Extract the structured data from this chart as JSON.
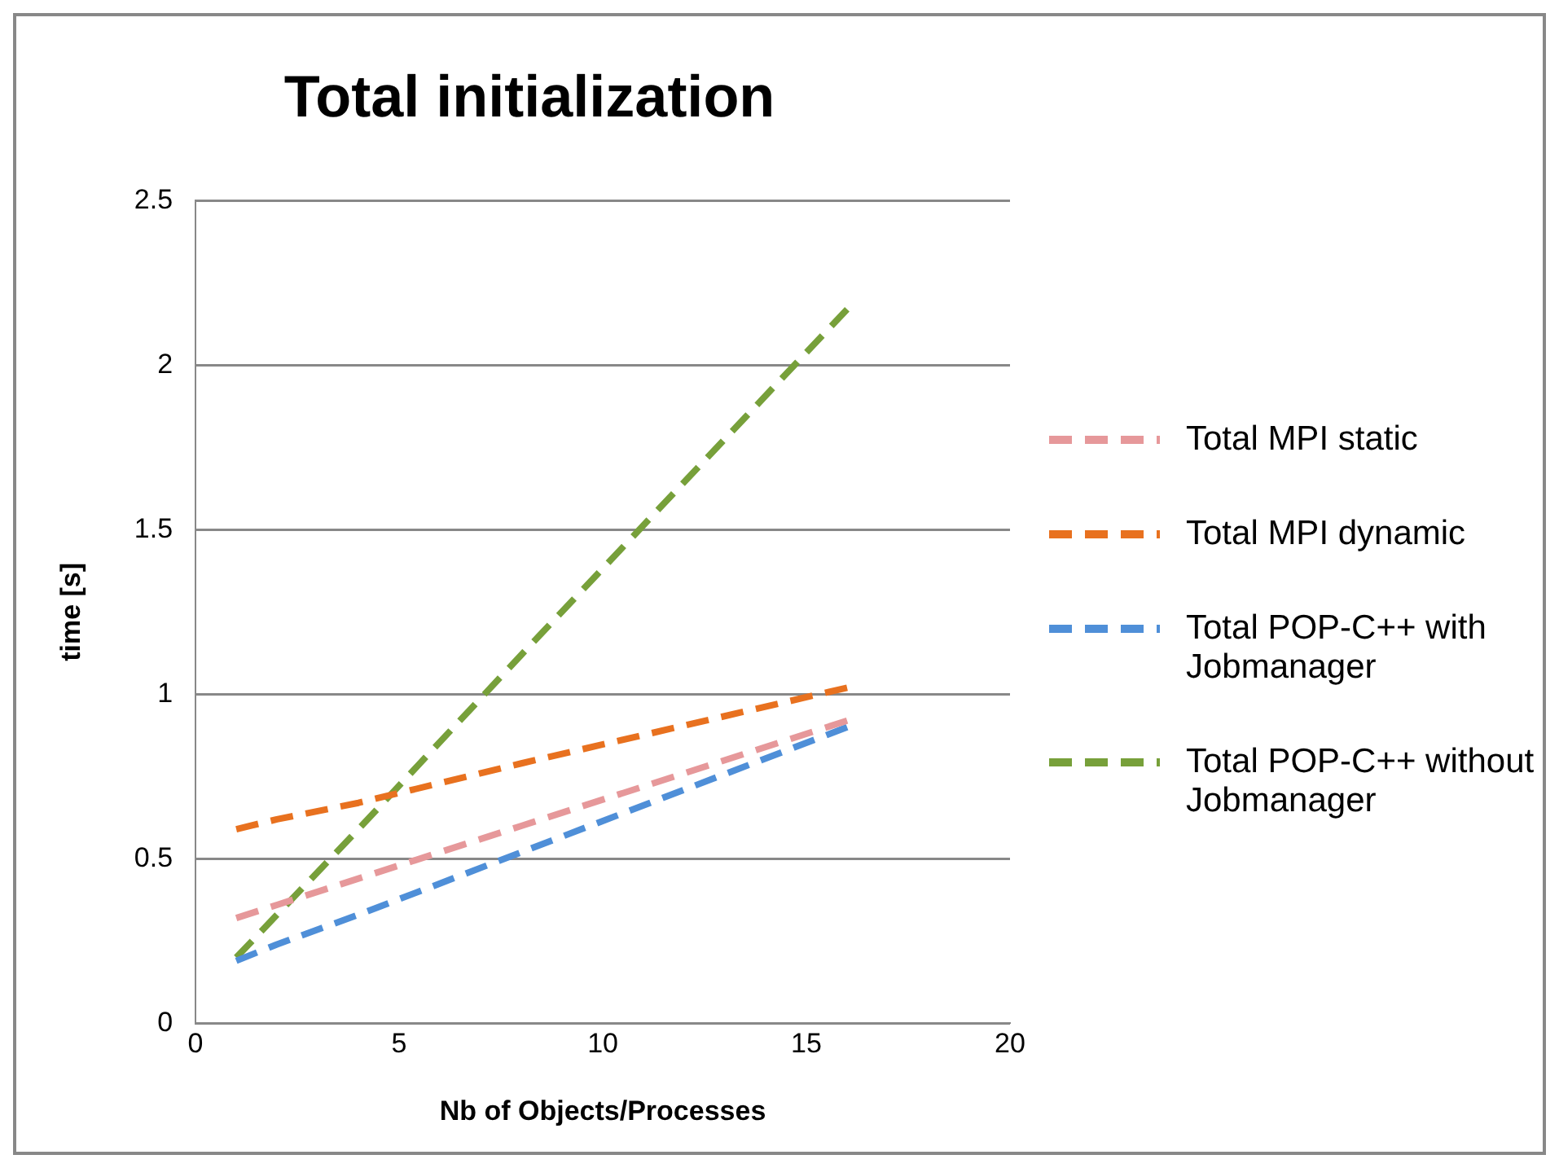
{
  "chart_data": {
    "type": "line",
    "title": "Total initialization",
    "xlabel": "Nb of Objects/Processes",
    "ylabel": "time [s]",
    "x": [
      1,
      2,
      4,
      8,
      16
    ],
    "series": [
      {
        "name": "Total MPI static",
        "color": "#e6989a",
        "values": [
          0.32,
          0.36,
          0.44,
          0.6,
          0.92
        ]
      },
      {
        "name": "Total MPI dynamic",
        "color": "#e8711f",
        "values": [
          0.59,
          0.62,
          0.67,
          0.79,
          1.02
        ]
      },
      {
        "name": "Total POP-C++ with Jobmanager",
        "color": "#4f8fd8",
        "values": [
          0.19,
          0.24,
          0.33,
          0.52,
          0.9
        ]
      },
      {
        "name": "Total POP-C++ without Jobmanager",
        "color": "#77a03a",
        "values": [
          0.2,
          0.33,
          0.59,
          1.12,
          2.17
        ]
      }
    ],
    "xlim": [
      0,
      20
    ],
    "xticks": [
      0,
      5,
      10,
      15,
      20
    ],
    "ylim": [
      0,
      2.5
    ],
    "yticks": [
      0,
      0.5,
      1,
      1.5,
      2,
      2.5
    ],
    "grid": "y",
    "legend": "right",
    "marker": "none",
    "line_style": "dashed"
  }
}
